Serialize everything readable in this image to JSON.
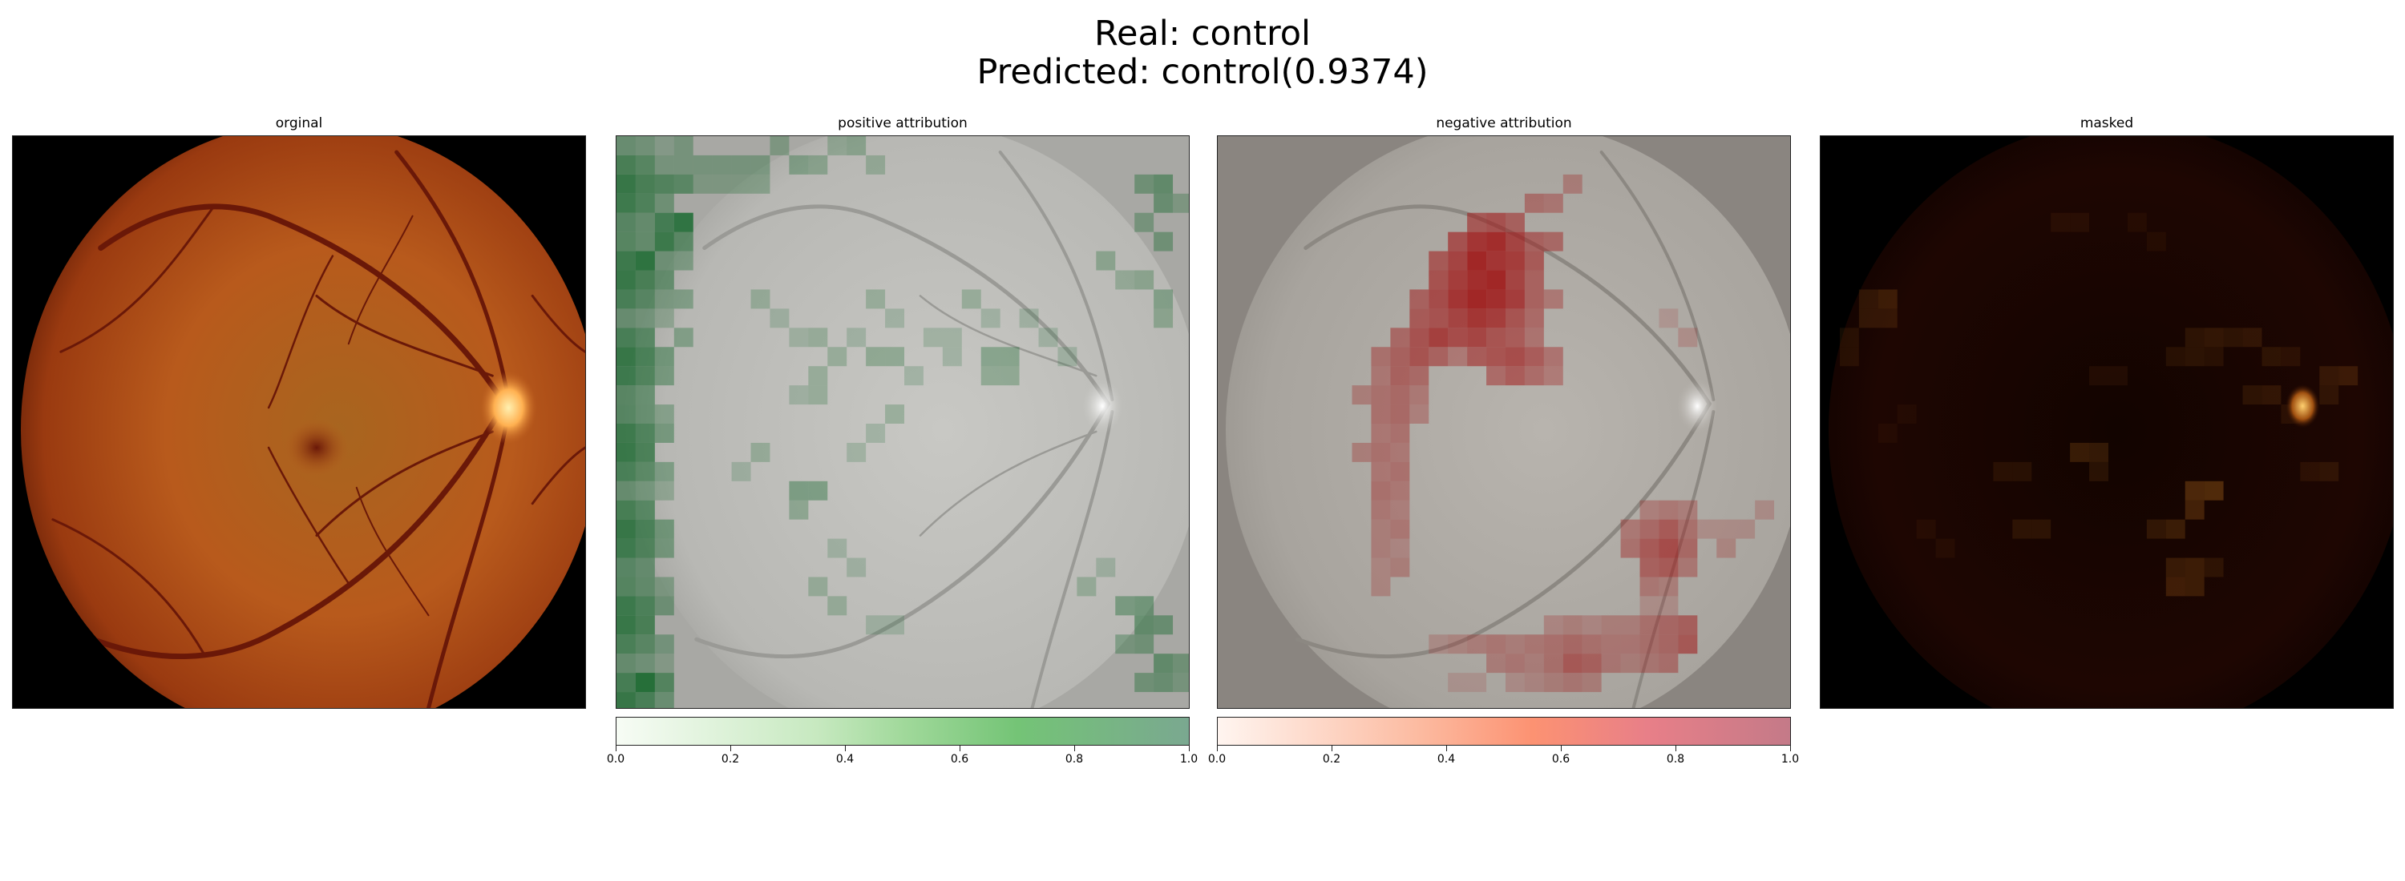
{
  "figure": {
    "title_line1": "Real: control",
    "title_line2": "Predicted: control(0.9374)"
  },
  "panels": [
    {
      "id": "original",
      "title": "orginal"
    },
    {
      "id": "positive",
      "title": "positive attribution"
    },
    {
      "id": "negative",
      "title": "negative attribution"
    },
    {
      "id": "masked",
      "title": "masked"
    }
  ],
  "colorbars": {
    "positive": {
      "ticks": [
        "0.0",
        "0.2",
        "0.4",
        "0.6",
        "0.8",
        "1.0"
      ],
      "range": [
        0,
        1
      ],
      "colormap": "Greens",
      "color_low": "#f7fcf5",
      "color_high": "#7aa890"
    },
    "negative": {
      "ticks": [
        "0.0",
        "0.2",
        "0.4",
        "0.6",
        "0.8",
        "1.0"
      ],
      "range": [
        0,
        1
      ],
      "colormap": "Reds",
      "color_low": "#fff5f0",
      "color_high": "#c47a88"
    }
  },
  "colors": {
    "fundus_orange": "#c0501a",
    "vessel": "#6a1808",
    "optic_disc": "#ffc070",
    "gray_overlay": "#8a8580"
  }
}
